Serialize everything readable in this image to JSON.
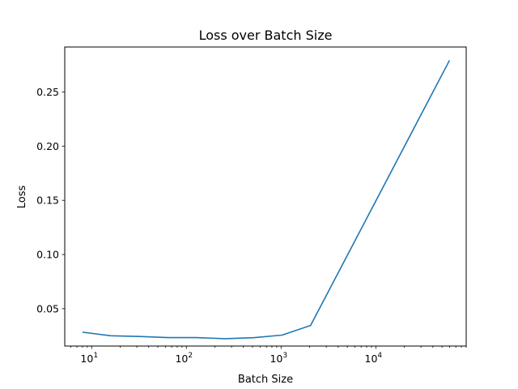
{
  "chart_data": {
    "type": "line",
    "title": "Loss over Batch Size",
    "xlabel": "Batch Size",
    "ylabel": "Loss",
    "xscale": "log",
    "xlim": [
      5.2,
      90000
    ],
    "ylim": [
      0.0155,
      0.2915
    ],
    "grid": false,
    "x_ticks": [
      {
        "value": 10,
        "base": "10",
        "exp": "1"
      },
      {
        "value": 100,
        "base": "10",
        "exp": "2"
      },
      {
        "value": 1000,
        "base": "10",
        "exp": "3"
      },
      {
        "value": 10000,
        "base": "10",
        "exp": "4"
      }
    ],
    "y_ticks": [
      {
        "value": 0.05,
        "label": "0.05"
      },
      {
        "value": 0.1,
        "label": "0.10"
      },
      {
        "value": 0.15,
        "label": "0.15"
      },
      {
        "value": 0.2,
        "label": "0.20"
      },
      {
        "value": 0.25,
        "label": "0.25"
      }
    ],
    "series": [
      {
        "color": "#1f77b4",
        "x": [
          8,
          16,
          32,
          64,
          128,
          256,
          512,
          1024,
          2048,
          60000
        ],
        "y": [
          0.0283,
          0.025,
          0.0243,
          0.0233,
          0.0233,
          0.0223,
          0.0232,
          0.0256,
          0.0345,
          0.2792
        ]
      }
    ]
  }
}
